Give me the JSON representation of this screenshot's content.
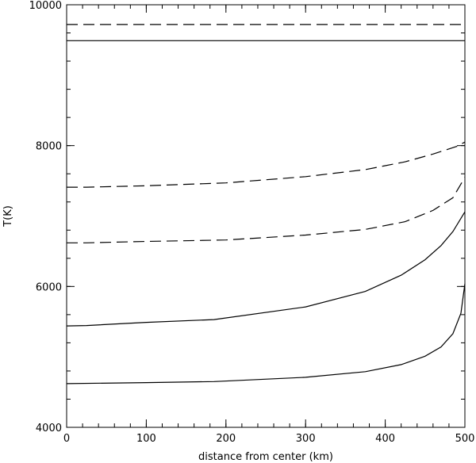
{
  "chart_data": {
    "type": "line",
    "title": "",
    "xlabel": "distance from center (km)",
    "ylabel": "T(K)",
    "xlim": [
      0,
      500
    ],
    "ylim": [
      4000,
      10000
    ],
    "x_major_ticks": [
      0,
      100,
      200,
      300,
      400,
      500
    ],
    "x_tick_labels": [
      "0",
      "100",
      "200",
      "300",
      "400",
      "500"
    ],
    "x_minor_step": 20,
    "y_major_ticks": [
      4000,
      6000,
      8000,
      10000
    ],
    "y_tick_labels": [
      "4000",
      "6000",
      "8000",
      "10000"
    ],
    "y_minor_step": 400,
    "grid": false,
    "series": [
      {
        "style": "dashed",
        "x": [
          0,
          100,
          200,
          300,
          400,
          500
        ],
        "y": [
          9720,
          9720,
          9720,
          9720,
          9720,
          9720
        ]
      },
      {
        "style": "solid",
        "x": [
          0,
          100,
          200,
          300,
          400,
          500
        ],
        "y": [
          9490,
          9490,
          9490,
          9490,
          9490,
          9490
        ]
      },
      {
        "style": "dashed",
        "x": [
          0,
          25,
          100,
          200,
          300,
          375,
          425,
          460,
          490,
          500
        ],
        "y": [
          7410,
          7410,
          7430,
          7470,
          7560,
          7660,
          7770,
          7880,
          7990,
          8050
        ]
      },
      {
        "style": "dashed",
        "x": [
          0,
          25,
          100,
          200,
          300,
          375,
          425,
          460,
          485,
          500
        ],
        "y": [
          6620,
          6620,
          6640,
          6660,
          6730,
          6810,
          6920,
          7080,
          7260,
          7550
        ]
      },
      {
        "style": "solid",
        "x": [
          0,
          25,
          100,
          185,
          300,
          375,
          420,
          450,
          470,
          485,
          500
        ],
        "y": [
          5440,
          5445,
          5490,
          5530,
          5710,
          5930,
          6160,
          6380,
          6580,
          6780,
          7060
        ]
      },
      {
        "style": "solid",
        "x": [
          0,
          100,
          185,
          300,
          375,
          420,
          450,
          470,
          485,
          495,
          500
        ],
        "y": [
          4620,
          4635,
          4650,
          4710,
          4790,
          4890,
          5010,
          5140,
          5330,
          5620,
          6040
        ]
      }
    ]
  }
}
